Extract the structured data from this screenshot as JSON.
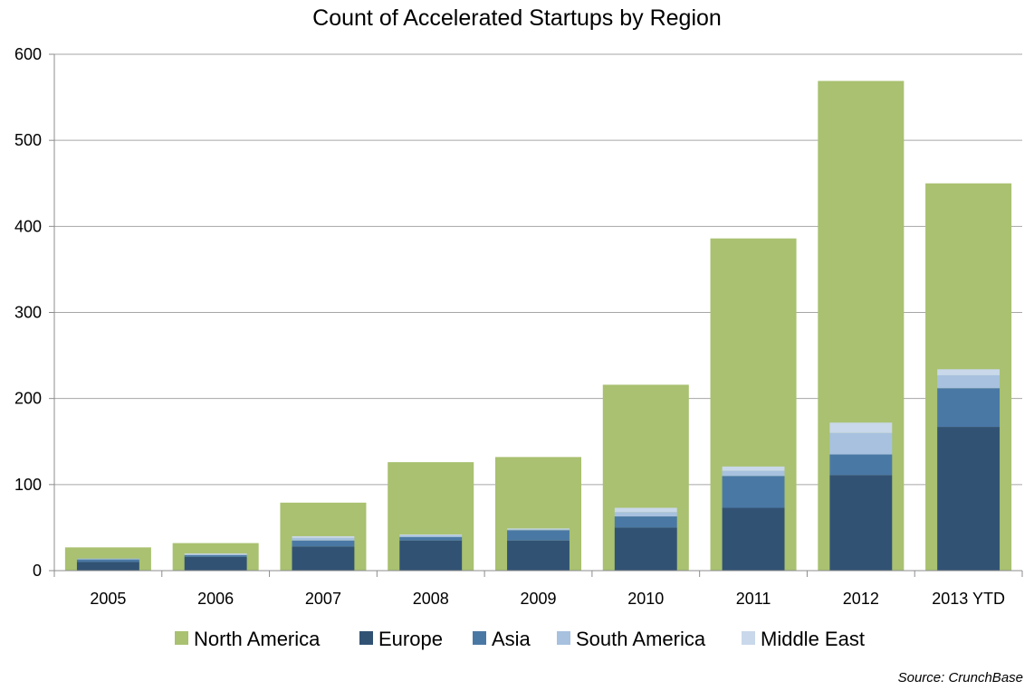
{
  "chart_data": {
    "type": "bar",
    "title": "Count of Accelerated Startups by Region",
    "xlabel": "",
    "ylabel": "",
    "categories": [
      "2005",
      "2006",
      "2007",
      "2008",
      "2009",
      "2010",
      "2011",
      "2012",
      "2013 YTD"
    ],
    "ylim": [
      0,
      600
    ],
    "yticks": [
      0,
      100,
      200,
      300,
      400,
      500,
      600
    ],
    "grid": true,
    "legend_position": "bottom",
    "overlay": {
      "name": "North America",
      "color": "#a9c170",
      "values": [
        27,
        32,
        79,
        126,
        132,
        216,
        386,
        569,
        450
      ]
    },
    "series": [
      {
        "name": "Europe",
        "color": "#325274",
        "values": [
          10,
          16,
          28,
          35,
          35,
          50,
          73,
          111,
          167
        ]
      },
      {
        "name": "Asia",
        "color": "#4a78a5",
        "values": [
          3,
          2,
          7,
          4,
          12,
          13,
          37,
          24,
          45
        ]
      },
      {
        "name": "South America",
        "color": "#a7c1df",
        "values": [
          1,
          1,
          3,
          2,
          1,
          5,
          6,
          25,
          15
        ]
      },
      {
        "name": "Middle East",
        "color": "#c9d8ea",
        "values": [
          0,
          1,
          2,
          1,
          1,
          5,
          5,
          12,
          7
        ]
      }
    ],
    "source": "Source: CrunchBase"
  }
}
